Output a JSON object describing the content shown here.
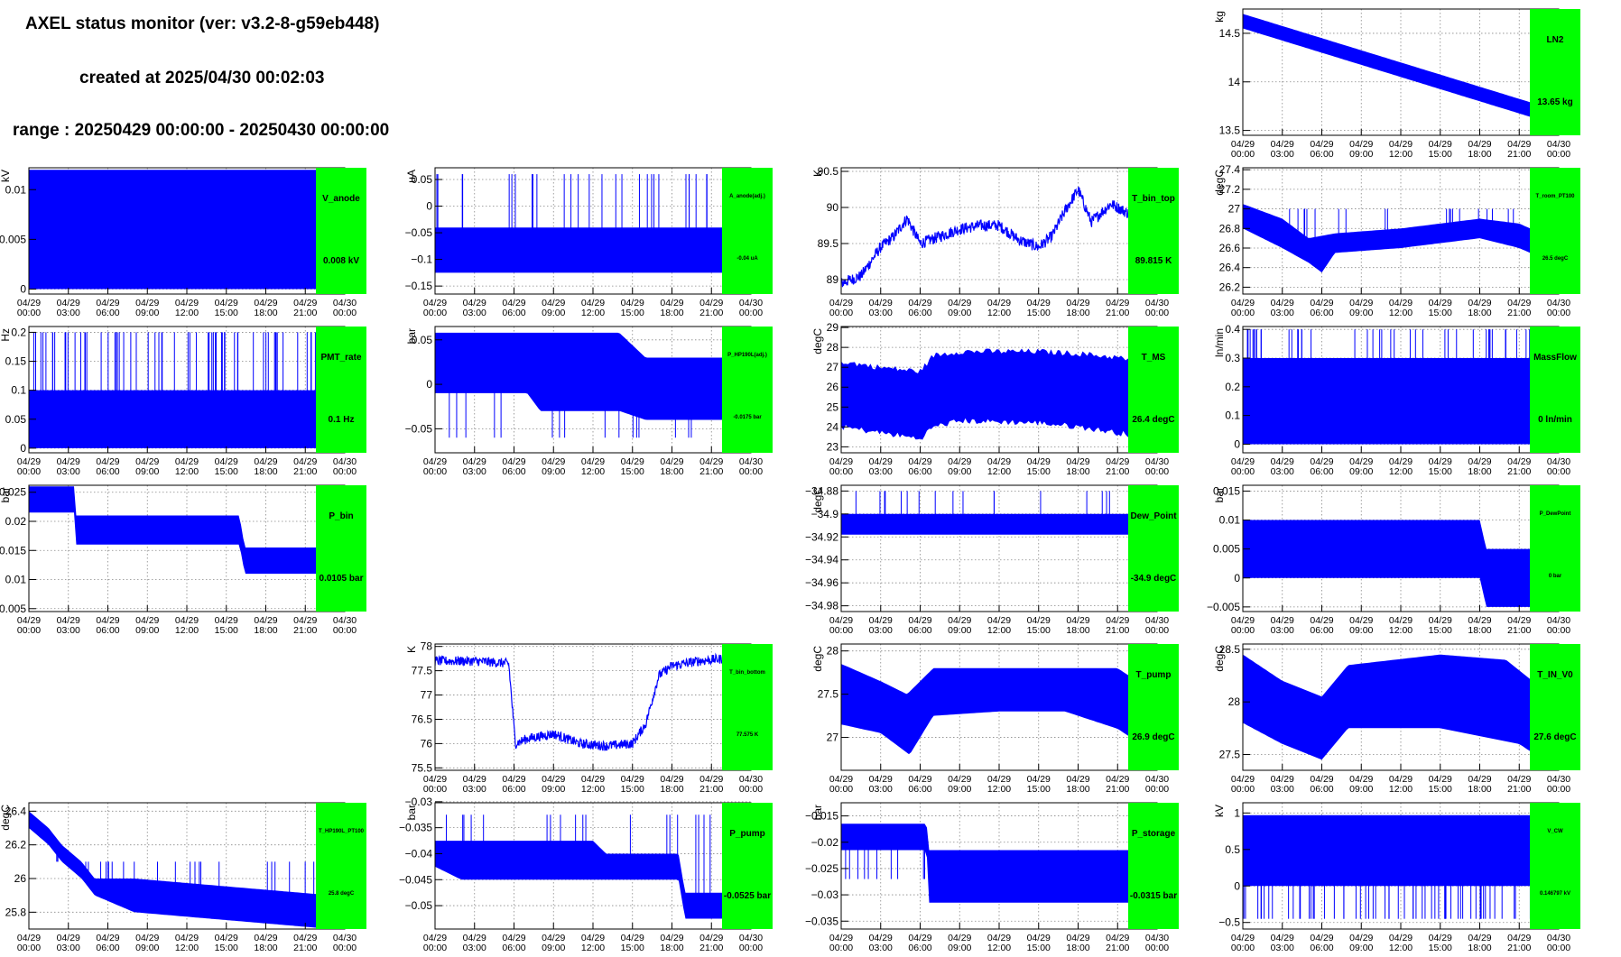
{
  "header": {
    "title": "AXEL status monitor (ver: v3.2-8-g59eb448)",
    "created": "created at 2025/04/30 00:02:03",
    "range": "range : 20250429 00:00:00 - 20250430 00:00:00"
  },
  "colors": {
    "trace": "#0000ff",
    "badge": "#00ff00",
    "grid": "#999999"
  },
  "time_ticks": [
    [
      "04/29",
      "00:00"
    ],
    [
      "04/29",
      "03:00"
    ],
    [
      "04/29",
      "06:00"
    ],
    [
      "04/29",
      "09:00"
    ],
    [
      "04/29",
      "12:00"
    ],
    [
      "04/29",
      "15:00"
    ],
    [
      "04/29",
      "18:00"
    ],
    [
      "04/29",
      "21:00"
    ],
    [
      "04/30",
      "00:00"
    ]
  ],
  "chart_data": [
    {
      "id": "LN2",
      "type": "line",
      "name": "LN2",
      "value": "13.65 kg",
      "ylabel": "kg",
      "ylim": [
        13.45,
        14.75
      ],
      "yticks": [
        "13.5",
        "14",
        "14.5"
      ],
      "ytick_values": [
        13.5,
        14,
        14.5
      ],
      "mode": "band",
      "lo": [
        [
          0,
          14.55
        ],
        [
          24,
          13.55
        ]
      ],
      "hi": [
        [
          0,
          14.7
        ],
        [
          24,
          13.7
        ]
      ]
    },
    {
      "id": "V_anode",
      "type": "line",
      "name": "V_anode",
      "value": "0.008 kV",
      "ylabel": "kV",
      "ylim": [
        -0.0005,
        0.0122
      ],
      "yticks": [
        "0",
        "0.005",
        "0.01"
      ],
      "ytick_values": [
        0,
        0.005,
        0.01
      ],
      "mode": "band",
      "lo": [
        [
          0,
          0
        ],
        [
          24,
          0
        ]
      ],
      "hi": [
        [
          0,
          0.012
        ],
        [
          24,
          0.012
        ]
      ],
      "spikes": {
        "to": 0.008,
        "n": 100
      }
    },
    {
      "id": "A_anode",
      "type": "line",
      "name": "A_anode(adj.)",
      "value": "-0.04 uA",
      "ylabel": "uA",
      "ylim": [
        -0.165,
        0.072
      ],
      "yticks": [
        "−0.15",
        "−0.1",
        "−0.05",
        "0",
        "0.05"
      ],
      "ytick_values": [
        -0.15,
        -0.1,
        -0.05,
        0,
        0.05
      ],
      "mode": "band",
      "lo": [
        [
          0,
          -0.125
        ],
        [
          24,
          -0.125
        ]
      ],
      "hi": [
        [
          0,
          -0.04
        ],
        [
          24,
          -0.04
        ]
      ],
      "spikes": {
        "to": 0.06,
        "n": 30
      },
      "small": true
    },
    {
      "id": "T_bin_top",
      "type": "line",
      "name": "T_bin_top",
      "value": "89.815 K",
      "ylabel": "K",
      "ylim": [
        88.8,
        90.55
      ],
      "yticks": [
        "89",
        "89.5",
        "90",
        "90.5"
      ],
      "ytick_values": [
        89,
        89.5,
        90,
        90.5
      ],
      "mode": "noisy",
      "pts": [
        [
          0,
          88.95
        ],
        [
          1.5,
          89.05
        ],
        [
          3,
          89.45
        ],
        [
          4,
          89.6
        ],
        [
          5,
          89.85
        ],
        [
          6,
          89.5
        ],
        [
          7.5,
          89.6
        ],
        [
          9,
          89.7
        ],
        [
          10.5,
          89.75
        ],
        [
          12,
          89.75
        ],
        [
          13.5,
          89.55
        ],
        [
          15,
          89.45
        ],
        [
          16,
          89.6
        ],
        [
          17,
          89.95
        ],
        [
          18,
          90.25
        ],
        [
          19,
          89.8
        ],
        [
          20.5,
          90.05
        ],
        [
          22,
          89.9
        ],
        [
          24,
          89.8
        ]
      ],
      "noise": 0.08
    },
    {
      "id": "T_room_PT100",
      "type": "line",
      "name": "T_room_PT100",
      "value": "26.5 degC",
      "ylabel": "degC",
      "ylim": [
        26.13,
        27.42
      ],
      "yticks": [
        "26.2",
        "26.4",
        "26.6",
        "26.8",
        "27",
        "27.2",
        "27.4"
      ],
      "ytick_values": [
        26.2,
        26.4,
        26.6,
        26.8,
        27,
        27.2,
        27.4
      ],
      "mode": "band",
      "lo": [
        [
          0,
          26.8
        ],
        [
          3,
          26.6
        ],
        [
          5,
          26.45
        ],
        [
          6,
          26.35
        ],
        [
          7,
          26.55
        ],
        [
          12,
          26.6
        ],
        [
          18,
          26.7
        ],
        [
          21,
          26.6
        ],
        [
          23.5,
          26.45
        ],
        [
          24,
          26.2
        ]
      ],
      "hi": [
        [
          0,
          27.05
        ],
        [
          3,
          26.9
        ],
        [
          5,
          26.7
        ],
        [
          7,
          26.75
        ],
        [
          12,
          26.8
        ],
        [
          18,
          26.9
        ],
        [
          21,
          26.85
        ],
        [
          23.5,
          26.7
        ],
        [
          24,
          26.6
        ]
      ],
      "spikes": {
        "to": 27.0,
        "n": 25
      },
      "small": true
    },
    {
      "id": "PMT_rate",
      "type": "line",
      "name": "PMT_rate",
      "value": "0.1 Hz",
      "ylabel": "Hz",
      "ylim": [
        -0.008,
        0.21
      ],
      "yticks": [
        "0",
        "0.05",
        "0.1",
        "0.15",
        "0.2"
      ],
      "ytick_values": [
        0,
        0.05,
        0.1,
        0.15,
        0.2
      ],
      "mode": "band",
      "lo": [
        [
          0,
          0
        ],
        [
          24,
          0
        ]
      ],
      "hi": [
        [
          0,
          0.1
        ],
        [
          24,
          0.1
        ]
      ],
      "spikes": {
        "to": 0.2,
        "n": 70
      }
    },
    {
      "id": "P_HP190L",
      "type": "line",
      "name": "P_HP190L(adj.)",
      "value": "-0.0175 bar",
      "ylabel": "bar",
      "ylim": [
        -0.077,
        0.065
      ],
      "yticks": [
        "−0.05",
        "0",
        "0.05"
      ],
      "ytick_values": [
        -0.05,
        0,
        0.05
      ],
      "mode": "band",
      "lo": [
        [
          0,
          -0.01
        ],
        [
          7,
          -0.01
        ],
        [
          8,
          -0.03
        ],
        [
          14,
          -0.03
        ],
        [
          16,
          -0.04
        ],
        [
          24,
          -0.04
        ]
      ],
      "hi": [
        [
          0,
          0.058
        ],
        [
          14,
          0.058
        ],
        [
          16,
          0.03
        ],
        [
          24,
          0.03
        ]
      ],
      "spikes": {
        "to": -0.06,
        "n": 20
      },
      "small": true
    },
    {
      "id": "T_MS",
      "type": "line",
      "name": "T_MS",
      "value": "26.4 degC",
      "ylabel": "degC",
      "ylim": [
        22.7,
        29.05
      ],
      "yticks": [
        "23",
        "24",
        "25",
        "26",
        "27",
        "28",
        "29"
      ],
      "ytick_values": [
        23,
        24,
        25,
        26,
        27,
        28,
        29
      ],
      "mode": "band",
      "lo": [
        [
          0,
          24.0
        ],
        [
          3,
          23.7
        ],
        [
          6,
          23.4
        ],
        [
          7,
          24.0
        ],
        [
          9,
          24.3
        ],
        [
          15,
          24.2
        ],
        [
          18,
          24.0
        ],
        [
          21,
          23.7
        ],
        [
          24,
          23.4
        ]
      ],
      "hi": [
        [
          0,
          27.3
        ],
        [
          3,
          27.0
        ],
        [
          6,
          26.8
        ],
        [
          7,
          27.6
        ],
        [
          9,
          27.8
        ],
        [
          15,
          27.8
        ],
        [
          18,
          27.7
        ],
        [
          21,
          27.5
        ],
        [
          24,
          27.1
        ]
      ],
      "jag": 0.3
    },
    {
      "id": "MassFlow",
      "type": "line",
      "name": "MassFlow",
      "value": "0 ln/min",
      "ylabel": "ln/min",
      "ylim": [
        -0.03,
        0.41
      ],
      "yticks": [
        "0",
        "0.1",
        "0.2",
        "0.3",
        "0.4"
      ],
      "ytick_values": [
        0,
        0.1,
        0.2,
        0.3,
        0.4
      ],
      "mode": "band",
      "lo": [
        [
          0,
          0
        ],
        [
          24,
          0
        ]
      ],
      "hi": [
        [
          0,
          0.3
        ],
        [
          24,
          0.3
        ]
      ],
      "spikes": {
        "to": 0.4,
        "n": 45
      }
    },
    {
      "id": "P_bin",
      "type": "line",
      "name": "P_bin",
      "value": "0.0105 bar",
      "ylabel": "bar",
      "ylim": [
        0.0045,
        0.0262
      ],
      "yticks": [
        "0.005",
        "0.01",
        "0.015",
        "0.02",
        "0.025"
      ],
      "ytick_values": [
        0.005,
        0.01,
        0.015,
        0.02,
        0.025
      ],
      "mode": "band",
      "lo": [
        [
          0,
          0.0215
        ],
        [
          3.5,
          0.0215
        ],
        [
          3.6,
          0.016
        ],
        [
          16,
          0.016
        ],
        [
          16.4,
          0.011
        ],
        [
          22,
          0.011
        ],
        [
          22.8,
          0.0055
        ],
        [
          24,
          0.0055
        ]
      ],
      "hi": [
        [
          0,
          0.026
        ],
        [
          3.5,
          0.026
        ],
        [
          3.6,
          0.021
        ],
        [
          16,
          0.021
        ],
        [
          16.4,
          0.0155
        ],
        [
          22,
          0.0155
        ],
        [
          22.8,
          0.0105
        ],
        [
          24,
          0.0105
        ]
      ]
    },
    {
      "id": "Dew_Point",
      "type": "line",
      "name": "Dew_Point",
      "value": "-34.9 degC",
      "ylabel": "degC",
      "ylim": [
        -34.985,
        -34.875
      ],
      "yticks": [
        "−34.98",
        "−34.96",
        "−34.94",
        "−34.92",
        "−34.9",
        "−34.88"
      ],
      "ytick_values": [
        -34.98,
        -34.96,
        -34.94,
        -34.92,
        -34.9,
        -34.88
      ],
      "mode": "band",
      "lo": [
        [
          0,
          -34.918
        ],
        [
          24,
          -34.918
        ]
      ],
      "hi": [
        [
          0,
          -34.9
        ],
        [
          24,
          -34.9
        ]
      ],
      "spikes": {
        "to": -34.88,
        "n": 18
      }
    },
    {
      "id": "P_DewPoint",
      "type": "line",
      "name": "P_DewPoint",
      "value": "0 bar",
      "ylabel": "bar",
      "ylim": [
        -0.0058,
        0.016
      ],
      "yticks": [
        "−0.005",
        "0",
        "0.005",
        "0.01",
        "0.015"
      ],
      "ytick_values": [
        -0.005,
        0,
        0.005,
        0.01,
        0.015
      ],
      "mode": "band",
      "lo": [
        [
          0,
          0
        ],
        [
          18,
          0
        ],
        [
          18.5,
          -0.005
        ],
        [
          24,
          -0.005
        ]
      ],
      "hi": [
        [
          0,
          0.01
        ],
        [
          18,
          0.01
        ],
        [
          18.5,
          0.005
        ],
        [
          24,
          0.005
        ]
      ],
      "small": true
    },
    {
      "id": "T_bin_bottom",
      "type": "line",
      "name": "T_bin_bottom",
      "value": "77.575 K",
      "ylabel": "K",
      "ylim": [
        75.45,
        78.05
      ],
      "yticks": [
        "75.5",
        "76",
        "76.5",
        "77",
        "77.5",
        "78"
      ],
      "ytick_values": [
        75.5,
        76,
        76.5,
        77,
        77.5,
        78
      ],
      "mode": "noisy",
      "pts": [
        [
          0,
          77.7
        ],
        [
          3,
          77.7
        ],
        [
          5.6,
          77.65
        ],
        [
          6.1,
          76.0
        ],
        [
          7,
          76.1
        ],
        [
          9,
          76.2
        ],
        [
          11,
          76.0
        ],
        [
          13,
          75.95
        ],
        [
          15,
          76.0
        ],
        [
          16,
          76.4
        ],
        [
          17,
          77.4
        ],
        [
          18,
          77.6
        ],
        [
          20,
          77.7
        ],
        [
          24,
          77.8
        ]
      ],
      "noise": 0.1,
      "small": true
    },
    {
      "id": "T_pump",
      "type": "line",
      "name": "T_pump",
      "value": "26.9 degC",
      "ylabel": "degC",
      "ylim": [
        26.62,
        28.08
      ],
      "yticks": [
        "27",
        "27.5",
        "28"
      ],
      "ytick_values": [
        27,
        27.5,
        28
      ],
      "mode": "band",
      "lo": [
        [
          0,
          27.15
        ],
        [
          3,
          27.05
        ],
        [
          5.2,
          26.8
        ],
        [
          7,
          27.25
        ],
        [
          12,
          27.3
        ],
        [
          17,
          27.3
        ],
        [
          21,
          27.1
        ],
        [
          24,
          26.8
        ]
      ],
      "hi": [
        [
          0,
          27.85
        ],
        [
          3,
          27.65
        ],
        [
          5,
          27.5
        ],
        [
          7,
          27.8
        ],
        [
          12,
          27.8
        ],
        [
          21,
          27.8
        ],
        [
          24,
          27.5
        ]
      ]
    },
    {
      "id": "T_IN_V0",
      "type": "line",
      "name": "T_IN_V0",
      "value": "27.6 degC",
      "ylabel": "degC",
      "ylim": [
        27.35,
        28.55
      ],
      "yticks": [
        "27.5",
        "28",
        "28.5"
      ],
      "ytick_values": [
        27.5,
        28,
        28.5
      ],
      "mode": "band",
      "lo": [
        [
          0,
          27.8
        ],
        [
          3,
          27.6
        ],
        [
          6,
          27.45
        ],
        [
          8,
          27.75
        ],
        [
          15,
          27.75
        ],
        [
          21,
          27.6
        ],
        [
          24,
          27.35
        ]
      ],
      "hi": [
        [
          0,
          28.45
        ],
        [
          3,
          28.2
        ],
        [
          6,
          28.05
        ],
        [
          8,
          28.35
        ],
        [
          15,
          28.45
        ],
        [
          20,
          28.4
        ],
        [
          24,
          28.0
        ]
      ]
    },
    {
      "id": "T_HP190L_PT100",
      "type": "line",
      "name": "T_HP190L_PT100",
      "value": "25.8 degC",
      "ylabel": "degC",
      "ylim": [
        25.7,
        26.45
      ],
      "yticks": [
        "25.8",
        "26",
        "26.2",
        "26.4"
      ],
      "ytick_values": [
        25.8,
        26,
        26.2,
        26.4
      ],
      "mode": "step",
      "lo": [
        [
          0,
          26.3
        ],
        [
          1.5,
          26.2
        ],
        [
          2.5,
          26.1
        ],
        [
          4,
          26.0
        ],
        [
          5,
          25.9
        ],
        [
          8,
          25.8
        ],
        [
          23,
          25.7
        ],
        [
          24,
          25.7
        ]
      ],
      "hi": [
        [
          0,
          26.4
        ],
        [
          1.5,
          26.3
        ],
        [
          2.5,
          26.2
        ],
        [
          4,
          26.1
        ],
        [
          5,
          26.0
        ],
        [
          8,
          26.0
        ],
        [
          23,
          25.9
        ],
        [
          24,
          25.9
        ]
      ],
      "spikes": {
        "to": 26.1,
        "n": 30
      },
      "small": true
    },
    {
      "id": "P_pump",
      "type": "line",
      "name": "P_pump",
      "value": "-0.0525 bar",
      "ylabel": "bar",
      "ylim": [
        -0.0545,
        -0.0302
      ],
      "yticks": [
        "−0.05",
        "−0.045",
        "−0.04",
        "−0.035",
        "−0.03"
      ],
      "ytick_values": [
        -0.05,
        -0.045,
        -0.04,
        -0.035,
        -0.03
      ],
      "mode": "band",
      "lo": [
        [
          0,
          -0.0425
        ],
        [
          2,
          -0.045
        ],
        [
          18.5,
          -0.045
        ],
        [
          19,
          -0.0525
        ],
        [
          24,
          -0.0525
        ]
      ],
      "hi": [
        [
          0,
          -0.0375
        ],
        [
          12,
          -0.0375
        ],
        [
          13,
          -0.04
        ],
        [
          18.5,
          -0.04
        ],
        [
          19,
          -0.0475
        ],
        [
          24,
          -0.0475
        ]
      ],
      "spikes": {
        "to": -0.0325,
        "n": 20
      }
    },
    {
      "id": "P_storage",
      "type": "line",
      "name": "P_storage",
      "value": "-0.0315 bar",
      "ylabel": "bar",
      "ylim": [
        -0.0365,
        -0.0125
      ],
      "yticks": [
        "−0.035",
        "−0.03",
        "−0.025",
        "−0.02",
        "−0.015"
      ],
      "ytick_values": [
        -0.035,
        -0.03,
        -0.025,
        -0.02,
        -0.015
      ],
      "mode": "band",
      "lo": [
        [
          0,
          -0.0215
        ],
        [
          6.5,
          -0.0215
        ],
        [
          6.6,
          -0.0315
        ],
        [
          24,
          -0.0315
        ]
      ],
      "hi": [
        [
          0,
          -0.0165
        ],
        [
          6.5,
          -0.0165
        ],
        [
          6.6,
          -0.0215
        ],
        [
          24,
          -0.0215
        ]
      ],
      "spikes": {
        "to": -0.027,
        "n": 40
      }
    },
    {
      "id": "V_CW",
      "type": "line",
      "name": "V_CW",
      "value": "0.146797 kV",
      "ylabel": "kV",
      "ylim": [
        -0.59,
        1.14
      ],
      "yticks": [
        "−0.5",
        "0",
        "0.5",
        "1"
      ],
      "ytick_values": [
        -0.5,
        0,
        0.5,
        1
      ],
      "mode": "band",
      "lo": [
        [
          0,
          0.0
        ],
        [
          24,
          0.0
        ]
      ],
      "hi": [
        [
          0,
          0.97
        ],
        [
          24,
          0.97
        ]
      ],
      "spikes": {
        "to": -0.45,
        "n": 70
      },
      "small": true
    }
  ]
}
